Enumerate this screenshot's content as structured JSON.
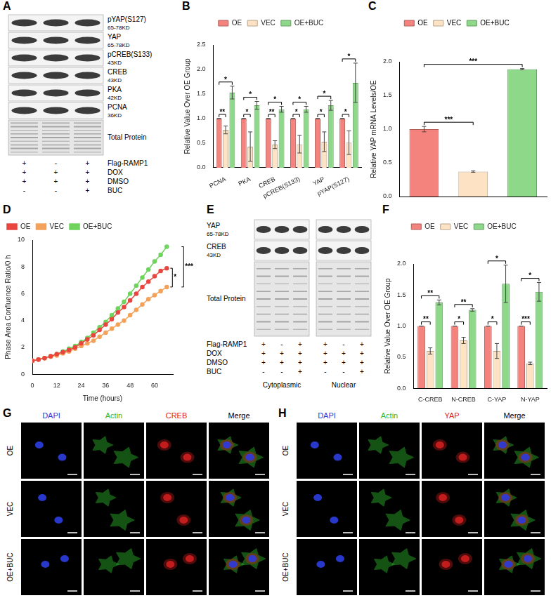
{
  "chart_data": [
    {
      "panel": "B",
      "type": "bar",
      "categories": [
        "PCNA",
        "PKA",
        "CREB",
        "pCREB(S133)",
        "YAP",
        "pYAP(S127)"
      ],
      "series": [
        {
          "name": "OE",
          "color": "#f4837d",
          "values": [
            1,
            1,
            1,
            1,
            1,
            1
          ],
          "errors": [
            0,
            0,
            0,
            0,
            0,
            0
          ]
        },
        {
          "name": "VEC",
          "color": "#fde3c3",
          "values": [
            0.77,
            0.43,
            0.47,
            0.48,
            0.53,
            0.51
          ],
          "errors": [
            0.08,
            0.3,
            0.08,
            0.18,
            0.2,
            0.24
          ]
        },
        {
          "name": "OE+BUC",
          "color": "#8ed88a",
          "values": [
            1.53,
            1.27,
            1.19,
            1.19,
            1.27,
            1.73
          ],
          "errors": [
            0.13,
            0.08,
            0.06,
            0.06,
            0.1,
            0.4
          ]
        }
      ],
      "y_label": "Relative Value Over OE Group",
      "ylim": [
        0,
        2.5
      ],
      "yticks": [
        {
          "value": 0,
          "label": "0.0"
        },
        {
          "value": 0.5,
          "label": "0.5"
        },
        {
          "value": 1,
          "label": "1.0"
        },
        {
          "value": 1.5,
          "label": "1.5"
        },
        {
          "value": 2,
          "label": "2.0"
        },
        {
          "value": 2.5,
          "label": "2.5"
        }
      ],
      "grid": false,
      "legend": "top",
      "significance": [
        {
          "category": "PCNA",
          "groups": [
            "OE",
            "VEC"
          ],
          "label": "**"
        },
        {
          "category": "PCNA",
          "groups": [
            "OE",
            "OE+BUC"
          ],
          "label": "*"
        },
        {
          "category": "PKA",
          "groups": [
            "OE",
            "VEC"
          ],
          "label": "*"
        },
        {
          "category": "PKA",
          "groups": [
            "OE",
            "OE+BUC"
          ],
          "label": "*"
        },
        {
          "category": "CREB",
          "groups": [
            "OE",
            "VEC"
          ],
          "label": "**"
        },
        {
          "category": "CREB",
          "groups": [
            "OE",
            "OE+BUC"
          ],
          "label": "*"
        },
        {
          "category": "pCREB(S133)",
          "groups": [
            "OE",
            "VEC"
          ],
          "label": "*"
        },
        {
          "category": "pCREB(S133)",
          "groups": [
            "OE",
            "OE+BUC"
          ],
          "label": "*"
        },
        {
          "category": "YAP",
          "groups": [
            "OE",
            "VEC"
          ],
          "label": "*"
        },
        {
          "category": "YAP",
          "groups": [
            "OE",
            "OE+BUC"
          ],
          "label": "*"
        },
        {
          "category": "pYAP(S127)",
          "groups": [
            "OE",
            "VEC"
          ],
          "label": "*"
        },
        {
          "category": "pYAP(S127)",
          "groups": [
            "OE",
            "OE+BUC"
          ],
          "label": "*"
        }
      ]
    },
    {
      "panel": "C",
      "type": "bar",
      "categories": [
        "OE",
        "VEC",
        "OE+BUC"
      ],
      "values": [
        1,
        0.37,
        1.89
      ],
      "errors": [
        0.04,
        0.01,
        0.01
      ],
      "colors": [
        "#f4837d",
        "#fde3c3",
        "#8ed88a"
      ],
      "y_label": "Relative YAP mRNA Levels/OE",
      "ylim": [
        0,
        2
      ],
      "yticks": [
        {
          "value": 0,
          "label": "0.0"
        },
        {
          "value": 0.5,
          "label": "0.5"
        },
        {
          "value": 1,
          "label": "1.0"
        },
        {
          "value": 1.5,
          "label": "1.5"
        },
        {
          "value": 2,
          "label": "2.0"
        }
      ],
      "grid": false,
      "legend": "top",
      "tick_labels": "y",
      "significance": [
        {
          "groups": [
            "OE",
            "VEC"
          ],
          "label": "***"
        },
        {
          "groups": [
            "OE",
            "OE+BUC"
          ],
          "label": "***"
        }
      ]
    },
    {
      "panel": "D",
      "type": "line",
      "x": [
        0,
        3,
        6,
        9,
        12,
        15,
        18,
        21,
        24,
        27,
        30,
        33,
        36,
        39,
        42,
        45,
        48,
        51,
        54,
        57,
        60,
        63,
        66
      ],
      "series": [
        {
          "name": "OE",
          "color": "#e8463f",
          "values": [
            1,
            1.1,
            1.2,
            1.35,
            1.5,
            1.65,
            1.8,
            2.0,
            2.3,
            2.6,
            2.9,
            3.3,
            3.7,
            4.1,
            4.6,
            5.0,
            5.5,
            6.0,
            6.5,
            6.9,
            7.3,
            7.7,
            7.9
          ]
        },
        {
          "name": "VEC",
          "color": "#f4a259",
          "values": [
            1,
            1.1,
            1.2,
            1.3,
            1.4,
            1.55,
            1.7,
            1.9,
            2.1,
            2.3,
            2.5,
            2.8,
            3.1,
            3.4,
            3.7,
            4.0,
            4.4,
            4.8,
            5.2,
            5.6,
            5.9,
            6.2,
            6.5
          ]
        },
        {
          "name": "OE+BUC",
          "color": "#6fd35e",
          "values": [
            1,
            1.1,
            1.2,
            1.35,
            1.5,
            1.7,
            1.9,
            2.1,
            2.4,
            2.7,
            3.1,
            3.5,
            3.9,
            4.4,
            4.9,
            5.4,
            6.0,
            6.6,
            7.2,
            7.8,
            8.4,
            8.9,
            9.5
          ]
        }
      ],
      "x_label": "Time (hours)",
      "y_label": "Phase Area Confluence Ratio/0 h",
      "xlim": [
        0,
        69
      ],
      "xticks": [
        0,
        12,
        24,
        36,
        48,
        60
      ],
      "ylim": [
        0,
        10
      ],
      "yticks": [
        0,
        2,
        4,
        6,
        8,
        10
      ],
      "grid": false,
      "legend": "top",
      "marker": "circle",
      "significance": [
        {
          "groups": [
            "OE",
            "VEC"
          ],
          "label": "*"
        },
        {
          "groups": [
            "VEC",
            "OE+BUC"
          ],
          "label": "***"
        }
      ]
    },
    {
      "panel": "F",
      "type": "bar",
      "categories": [
        "C-CREB",
        "N-CREB",
        "C-YAP",
        "N-YAP"
      ],
      "series": [
        {
          "name": "OE",
          "color": "#f4837d",
          "values": [
            1,
            1,
            1,
            1
          ],
          "errors": [
            0,
            0,
            0,
            0
          ]
        },
        {
          "name": "VEC",
          "color": "#fde3c3",
          "values": [
            0.6,
            0.77,
            0.6,
            0.4
          ],
          "errors": [
            0.05,
            0.05,
            0.12,
            0.02
          ]
        },
        {
          "name": "OE+BUC",
          "color": "#8ed88a",
          "values": [
            1.38,
            1.26,
            1.68,
            1.55
          ],
          "errors": [
            0.04,
            0.02,
            0.3,
            0.15
          ]
        }
      ],
      "y_label": "Relative Value Over OE Group",
      "ylim": [
        0,
        2
      ],
      "yticks": [
        {
          "value": 0,
          "label": "0.0"
        },
        {
          "value": 0.5,
          "label": "0.5"
        },
        {
          "value": 1,
          "label": "1.0"
        },
        {
          "value": 1.5,
          "label": "1.5"
        },
        {
          "value": 2,
          "label": "2.0"
        }
      ],
      "grid": false,
      "legend": "top",
      "significance": [
        {
          "category": "C-CREB",
          "groups": [
            "OE",
            "VEC"
          ],
          "label": "**"
        },
        {
          "category": "C-CREB",
          "groups": [
            "OE",
            "OE+BUC"
          ],
          "label": "**"
        },
        {
          "category": "N-CREB",
          "groups": [
            "OE",
            "VEC"
          ],
          "label": "*"
        },
        {
          "category": "N-CREB",
          "groups": [
            "OE",
            "OE+BUC"
          ],
          "label": "**"
        },
        {
          "category": "C-YAP",
          "groups": [
            "OE",
            "VEC"
          ],
          "label": "*"
        },
        {
          "category": "C-YAP",
          "groups": [
            "OE",
            "OE+BUC"
          ],
          "label": "*"
        },
        {
          "category": "N-YAP",
          "groups": [
            "OE",
            "VEC"
          ],
          "label": "***"
        },
        {
          "category": "N-YAP",
          "groups": [
            "OE",
            "OE+BUC"
          ],
          "label": "*"
        }
      ]
    }
  ],
  "blots": [
    {
      "panel": "A",
      "rows": [
        {
          "name": "pYAP(S127)",
          "size": "65-78KD"
        },
        {
          "name": "YAP",
          "size": "65-78KD"
        },
        {
          "name": "pCREB(S133)",
          "size": "43KD"
        },
        {
          "name": "CREB",
          "size": "43KD"
        },
        {
          "name": "PKA",
          "size": "42KD"
        },
        {
          "name": "PCNA",
          "size": "36KD"
        },
        {
          "name": "Total Protein"
        }
      ],
      "conditions": [
        {
          "name": "Flag-RAMP1",
          "values": [
            "+",
            "-",
            "+"
          ]
        },
        {
          "name": "DOX",
          "values": [
            "+",
            "+",
            "+"
          ]
        },
        {
          "name": "DMSO",
          "values": [
            "+",
            "+",
            "+"
          ]
        },
        {
          "name": "BUC",
          "values": [
            "-",
            "-",
            "+"
          ]
        }
      ]
    },
    {
      "panel": "E",
      "rows": [
        {
          "name": "YAP",
          "size": "65-78KD"
        },
        {
          "name": "CREB",
          "size": "43KD"
        },
        {
          "name": "Total Protein"
        }
      ],
      "fractions": [
        "Cytoplasmic",
        "Nuclear"
      ],
      "conditions": [
        {
          "name": "Flag-RAMP1",
          "values": [
            "+",
            "-",
            "+"
          ]
        },
        {
          "name": "DOX",
          "values": [
            "+",
            "+",
            "+"
          ]
        },
        {
          "name": "DMSO",
          "values": [
            "+",
            "+",
            "+"
          ]
        },
        {
          "name": "BUC",
          "values": [
            "-",
            "-",
            "+"
          ]
        }
      ]
    }
  ],
  "micrographs": [
    {
      "panel": "G",
      "channels": [
        {
          "name": "DAPI",
          "color": "#2a3bd6"
        },
        {
          "name": "Actin",
          "color": "#2fb82f"
        },
        {
          "name": "CREB",
          "color": "#e02020"
        },
        {
          "name": "Merge",
          "color": "#000000"
        }
      ],
      "rows": [
        "OE",
        "VEC",
        "OE+BUC"
      ]
    },
    {
      "panel": "H",
      "channels": [
        {
          "name": "DAPI",
          "color": "#2a3bd6"
        },
        {
          "name": "Actin",
          "color": "#2fb82f"
        },
        {
          "name": "YAP",
          "color": "#e02020"
        },
        {
          "name": "Merge",
          "color": "#000000"
        }
      ],
      "rows": [
        "OE",
        "VEC",
        "OE+BUC"
      ]
    }
  ]
}
